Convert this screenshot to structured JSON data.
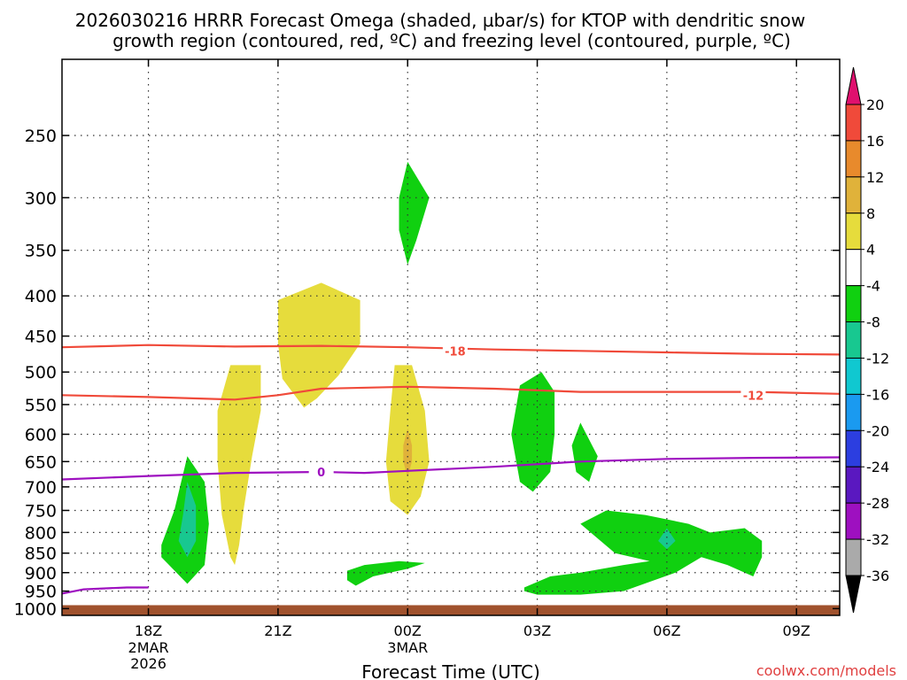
{
  "chart_data": {
    "type": "heatmap",
    "title_line1": "2026030216 HRRR Forecast Omega (shaded, µbar/s) for KTOP with dendritic snow",
    "title_line2": "growth region (contoured, red, ºC) and freezing level (contoured, purple, ºC)",
    "xlabel": "Forecast Time (UTC)",
    "ylabel": "",
    "credit": "coolwx.com/models",
    "x_range_hours": [
      -2.0,
      16.0
    ],
    "x_ticks": [
      {
        "hour": 0,
        "label": "18Z",
        "sub1": "2MAR",
        "sub2": "2026"
      },
      {
        "hour": 3,
        "label": "21Z",
        "sub1": "",
        "sub2": ""
      },
      {
        "hour": 6,
        "label": "00Z",
        "sub1": "3MAR",
        "sub2": ""
      },
      {
        "hour": 9,
        "label": "03Z",
        "sub1": "",
        "sub2": ""
      },
      {
        "hour": 12,
        "label": "06Z",
        "sub1": "",
        "sub2": ""
      },
      {
        "hour": 15,
        "label": "09Z",
        "sub1": "",
        "sub2": ""
      }
    ],
    "y_range_hpa": [
      200,
      1020
    ],
    "y_ticks": [
      "250",
      "300",
      "350",
      "400",
      "450",
      "500",
      "550",
      "600",
      "650",
      "700",
      "750",
      "800",
      "850",
      "900",
      "950",
      "1000"
    ],
    "grid": true,
    "ground_top_hpa": 990,
    "ground_color": "#a0522d",
    "colorbar": {
      "levels": [
        {
          "label": "20",
          "color": "#e8114f"
        },
        {
          "label": "16",
          "color": "#f04a3a"
        },
        {
          "label": "12",
          "color": "#e88a2c"
        },
        {
          "label": "8",
          "color": "#e0b23a"
        },
        {
          "label": "4",
          "color": "#e6dc3c"
        },
        {
          "label": "-4",
          "color": "#ffffff"
        },
        {
          "label": "-8",
          "color": "#10d010"
        },
        {
          "label": "-12",
          "color": "#18c890"
        },
        {
          "label": "-16",
          "color": "#10c8d0"
        },
        {
          "label": "-20",
          "color": "#1a9af0"
        },
        {
          "label": "-24",
          "color": "#2c3ee0"
        },
        {
          "label": "-28",
          "color": "#5a18c0"
        },
        {
          "label": "-32",
          "color": "#9e10c0"
        },
        {
          "label": "-36",
          "color": "#aaaaaa"
        }
      ],
      "top_arrow_color": "#e0106e",
      "bottom_arrow_color": "#000000"
    },
    "shaded_regions": [
      {
        "name": "yellow-region-1",
        "value_range": "4 to 8",
        "color": "#e6dc3c",
        "points": [
          [
            3.0,
            405
          ],
          [
            4.0,
            385
          ],
          [
            4.9,
            405
          ],
          [
            4.9,
            460
          ],
          [
            4.4,
            505
          ],
          [
            3.9,
            540
          ],
          [
            3.6,
            555
          ],
          [
            3.1,
            510
          ],
          [
            3.0,
            460
          ]
        ]
      },
      {
        "name": "yellow-region-2",
        "value_range": "4 to 8",
        "color": "#e6dc3c",
        "points": [
          [
            1.9,
            490
          ],
          [
            2.6,
            490
          ],
          [
            2.6,
            560
          ],
          [
            2.4,
            640
          ],
          [
            2.2,
            750
          ],
          [
            2.1,
            830
          ],
          [
            2.0,
            880
          ],
          [
            1.9,
            860
          ],
          [
            1.7,
            760
          ],
          [
            1.6,
            650
          ],
          [
            1.6,
            560
          ]
        ]
      },
      {
        "name": "yellow-region-3",
        "value_range": "4 to 8",
        "color": "#e6dc3c",
        "points": [
          [
            5.7,
            490
          ],
          [
            6.1,
            490
          ],
          [
            6.4,
            560
          ],
          [
            6.5,
            650
          ],
          [
            6.3,
            720
          ],
          [
            6.0,
            760
          ],
          [
            5.6,
            730
          ],
          [
            5.5,
            650
          ],
          [
            5.6,
            560
          ]
        ]
      },
      {
        "name": "orange-region-1",
        "value_range": "8 to 12",
        "color": "#e0b23a",
        "points": [
          [
            6.0,
            590
          ],
          [
            6.1,
            620
          ],
          [
            6.1,
            650
          ],
          [
            6.0,
            680
          ],
          [
            5.9,
            650
          ],
          [
            5.9,
            620
          ]
        ]
      },
      {
        "name": "green-region-1",
        "value_range": "-4 to -8",
        "color": "#10d010",
        "points": [
          [
            6.0,
            270
          ],
          [
            6.5,
            300
          ],
          [
            6.2,
            340
          ],
          [
            6.0,
            365
          ],
          [
            5.8,
            330
          ],
          [
            5.8,
            300
          ]
        ]
      },
      {
        "name": "green-region-2",
        "value_range": "-4 to -8",
        "color": "#10d010",
        "points": [
          [
            0.9,
            640
          ],
          [
            1.3,
            690
          ],
          [
            1.4,
            780
          ],
          [
            1.3,
            880
          ],
          [
            0.9,
            930
          ],
          [
            0.3,
            860
          ],
          [
            0.3,
            830
          ],
          [
            0.6,
            750
          ]
        ]
      },
      {
        "name": "teal-region-1",
        "value_range": "-8 to -12",
        "color": "#18c890",
        "points": [
          [
            0.9,
            690
          ],
          [
            1.1,
            740
          ],
          [
            1.1,
            820
          ],
          [
            0.9,
            860
          ],
          [
            0.7,
            820
          ],
          [
            0.8,
            760
          ]
        ]
      },
      {
        "name": "green-region-3",
        "value_range": "-4 to -8",
        "color": "#10d010",
        "points": [
          [
            4.6,
            895
          ],
          [
            5.0,
            880
          ],
          [
            5.8,
            870
          ],
          [
            6.4,
            875
          ],
          [
            6.0,
            890
          ],
          [
            5.2,
            910
          ],
          [
            4.8,
            935
          ],
          [
            4.6,
            920
          ]
        ]
      },
      {
        "name": "green-region-4",
        "value_range": "-4 to -8",
        "color": "#10d010",
        "points": [
          [
            8.6,
            520
          ],
          [
            9.1,
            500
          ],
          [
            9.4,
            530
          ],
          [
            9.4,
            600
          ],
          [
            9.3,
            670
          ],
          [
            8.9,
            710
          ],
          [
            8.6,
            690
          ],
          [
            8.4,
            600
          ]
        ]
      },
      {
        "name": "green-region-5",
        "value_range": "-4 to -8",
        "color": "#10d010",
        "points": [
          [
            10.0,
            580
          ],
          [
            10.4,
            640
          ],
          [
            10.2,
            690
          ],
          [
            9.9,
            670
          ],
          [
            9.8,
            620
          ]
        ]
      },
      {
        "name": "green-region-6",
        "value_range": "-4 to -8",
        "color": "#10d010",
        "points": [
          [
            8.7,
            940
          ],
          [
            9.3,
            910
          ],
          [
            10.0,
            900
          ],
          [
            11.0,
            880
          ],
          [
            11.6,
            870
          ],
          [
            10.8,
            850
          ],
          [
            10.0,
            780
          ],
          [
            10.6,
            750
          ],
          [
            11.5,
            760
          ],
          [
            12.5,
            780
          ],
          [
            13.0,
            800
          ],
          [
            13.8,
            790
          ],
          [
            14.2,
            820
          ],
          [
            14.2,
            860
          ],
          [
            14.0,
            910
          ],
          [
            13.4,
            880
          ],
          [
            12.8,
            860
          ],
          [
            12.2,
            900
          ],
          [
            11.0,
            950
          ],
          [
            10.0,
            960
          ],
          [
            9.0,
            960
          ],
          [
            8.7,
            950
          ]
        ]
      },
      {
        "name": "teal-region-2",
        "value_range": "-8 to -12",
        "color": "#18c890",
        "points": [
          [
            12.0,
            790
          ],
          [
            12.2,
            820
          ],
          [
            12.0,
            840
          ],
          [
            11.8,
            820
          ]
        ]
      }
    ],
    "contours": [
      {
        "name": "contour-minus18",
        "label": "-18",
        "color": "#f04a3a",
        "label_at": [
          7.1,
          470
        ],
        "x": [
          -2,
          0,
          2,
          4,
          6,
          8,
          10,
          12,
          14,
          16
        ],
        "y": [
          465,
          462,
          464,
          463,
          465,
          468,
          470,
          472,
          474,
          475
        ]
      },
      {
        "name": "contour-minus12",
        "label": "-12",
        "color": "#f04a3a",
        "label_at": [
          14.0,
          535
        ],
        "x": [
          -2,
          0,
          2,
          3,
          4,
          6,
          8,
          10,
          12,
          14,
          16
        ],
        "y": [
          535,
          538,
          542,
          535,
          525,
          522,
          525,
          530,
          530,
          530,
          533
        ]
      },
      {
        "name": "contour-zero-freezing",
        "label": "0",
        "color": "#9e10c0",
        "label_at": [
          4.0,
          670
        ],
        "x": [
          -2,
          0,
          2,
          4,
          5,
          6,
          8,
          10,
          12,
          14,
          16
        ],
        "y": [
          685,
          678,
          672,
          670,
          672,
          668,
          660,
          650,
          645,
          643,
          642
        ]
      },
      {
        "name": "contour-freezing-low",
        "label": "",
        "color": "#9e10c0",
        "label_at": null,
        "x": [
          -2,
          -1.5,
          -0.5,
          0.0
        ],
        "y": [
          957,
          945,
          940,
          940
        ]
      }
    ]
  }
}
